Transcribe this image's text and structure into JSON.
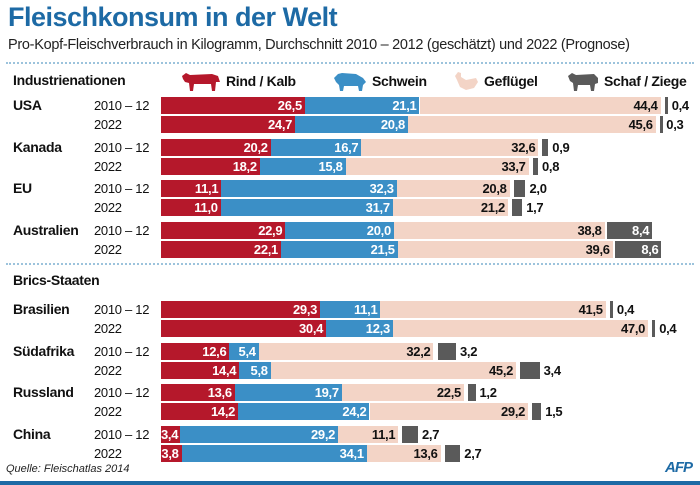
{
  "title": "Fleischkonsum in der Welt",
  "subtitle": "Pro-Kopf-Fleischverbrauch in Kilogramm, Durchschnitt 2010 – 2012 (geschätzt) und 2022 (Prognose)",
  "source": "Quelle: Fleischatlas 2014",
  "logo": "AFP",
  "chart_data": {
    "type": "bar",
    "orientation": "horizontal",
    "stacked": true,
    "title": "Fleischkonsum in der Welt",
    "series_names": [
      "Rind / Kalb",
      "Schwein",
      "Geflügel",
      "Schaf / Ziege"
    ],
    "colors": [
      "#b5182b",
      "#3b8fc6",
      "#f3d4c6",
      "#5a5a5a"
    ],
    "legend_icons": [
      "cow-icon",
      "pig-icon",
      "chicken-icon",
      "sheep-icon"
    ],
    "legend_position": "top",
    "groups": [
      {
        "name": "Industrienationen",
        "countries": [
          {
            "name": "USA",
            "rows": [
              {
                "period": "2010 – 12",
                "values": [
                  26.5,
                  21.1,
                  44.4,
                  0.4
                ]
              },
              {
                "period": "2022",
                "values": [
                  24.7,
                  20.8,
                  45.6,
                  0.3
                ]
              }
            ]
          },
          {
            "name": "Kanada",
            "rows": [
              {
                "period": "2010 – 12",
                "values": [
                  20.2,
                  16.7,
                  32.6,
                  0.9
                ]
              },
              {
                "period": "2022",
                "values": [
                  18.2,
                  15.8,
                  33.7,
                  0.8
                ]
              }
            ]
          },
          {
            "name": "EU",
            "rows": [
              {
                "period": "2010 – 12",
                "values": [
                  11.1,
                  32.3,
                  20.8,
                  2.0
                ]
              },
              {
                "period": "2022",
                "values": [
                  11.0,
                  31.7,
                  21.2,
                  1.7
                ]
              }
            ]
          },
          {
            "name": "Australien",
            "rows": [
              {
                "period": "2010 – 12",
                "values": [
                  22.9,
                  20.0,
                  38.8,
                  8.4
                ]
              },
              {
                "period": "2022",
                "values": [
                  22.1,
                  21.5,
                  39.6,
                  8.6
                ]
              }
            ]
          }
        ]
      },
      {
        "name": "Brics-Staaten",
        "countries": [
          {
            "name": "Brasilien",
            "rows": [
              {
                "period": "2010 – 12",
                "values": [
                  29.3,
                  11.1,
                  41.5,
                  0.4
                ]
              },
              {
                "period": "2022",
                "values": [
                  30.4,
                  12.3,
                  47.0,
                  0.4
                ]
              }
            ]
          },
          {
            "name": "Südafrika",
            "rows": [
              {
                "period": "2010 – 12",
                "values": [
                  12.6,
                  5.4,
                  32.2,
                  3.2
                ]
              },
              {
                "period": "2022",
                "values": [
                  14.4,
                  5.8,
                  45.2,
                  3.4
                ]
              }
            ]
          },
          {
            "name": "Russland",
            "rows": [
              {
                "period": "2010 – 12",
                "values": [
                  13.6,
                  19.7,
                  22.5,
                  1.2
                ]
              },
              {
                "period": "2022",
                "values": [
                  14.2,
                  24.2,
                  29.2,
                  1.5
                ]
              }
            ]
          },
          {
            "name": "China",
            "rows": [
              {
                "period": "2010 – 12",
                "values": [
                  3.4,
                  29.2,
                  11.1,
                  2.7
                ]
              },
              {
                "period": "2022",
                "values": [
                  3.8,
                  34.1,
                  13.6,
                  2.7
                ]
              }
            ]
          }
        ]
      }
    ]
  }
}
